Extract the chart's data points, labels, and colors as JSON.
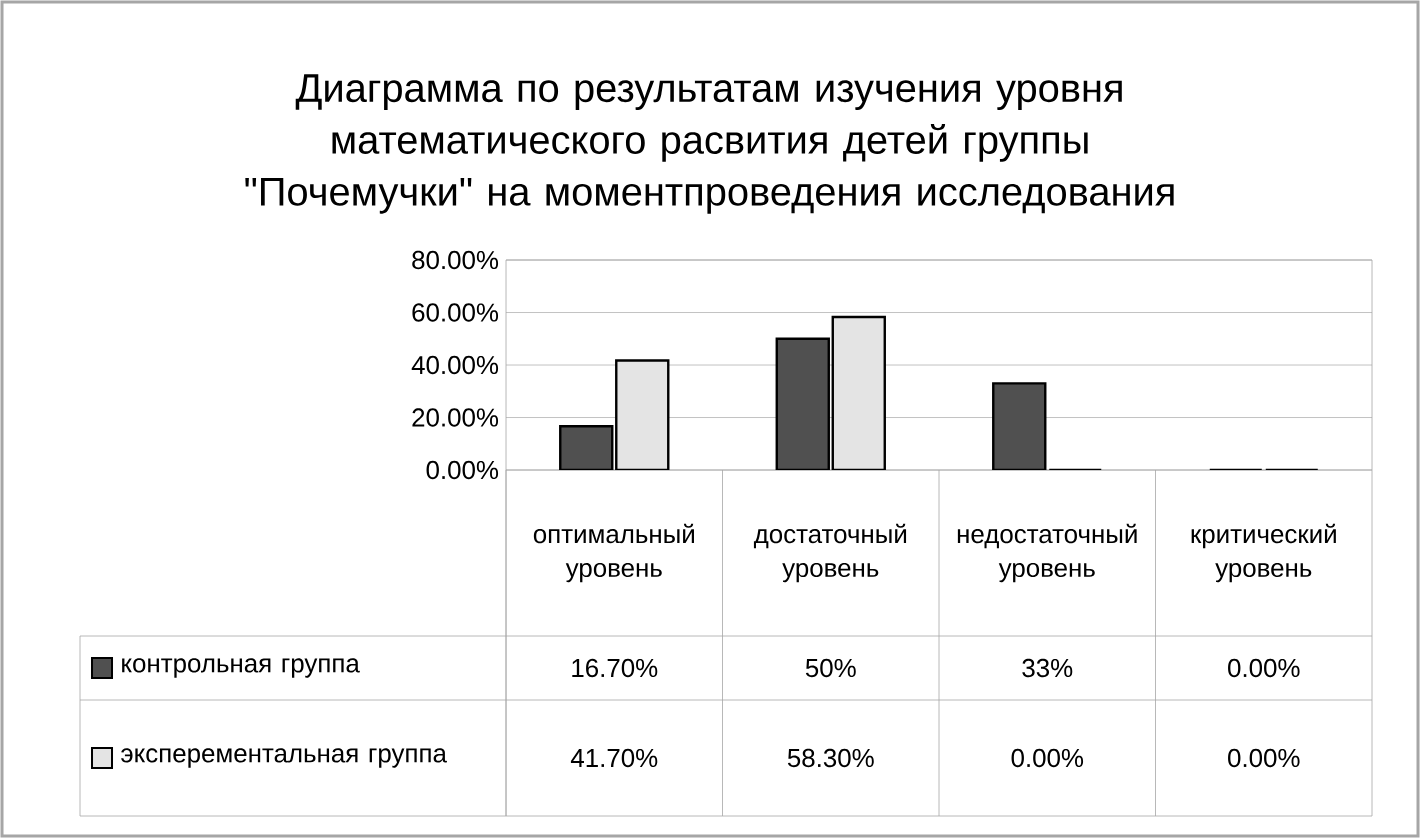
{
  "chart_data": {
    "type": "bar",
    "title": "Диаграмма по результатам изучения уровня математического расвития детей группы \"Почемучки\" на моментпроведения исследования",
    "categories": [
      "оптимальный уровень",
      "достаточный уровень",
      "недостаточный уровень",
      "критический уровень"
    ],
    "series": [
      {
        "name": "контрольная группа",
        "color": "#505050",
        "values": [
          16.7,
          50,
          33,
          0
        ],
        "value_labels": [
          "16.70%",
          "50%",
          "33%",
          "0.00%"
        ]
      },
      {
        "name": "эксперементальная группа",
        "color": "#e4e4e4",
        "values": [
          41.7,
          58.3,
          0,
          0
        ],
        "value_labels": [
          "41.70%",
          "58.30%",
          "0.00%",
          "0.00%"
        ]
      }
    ],
    "ylim": [
      0,
      80
    ],
    "yticks": [
      {
        "value": 0,
        "label": "0.00%"
      },
      {
        "value": 20,
        "label": "20.00%"
      },
      {
        "value": 40,
        "label": "40.00%"
      },
      {
        "value": 60,
        "label": "60.00%"
      },
      {
        "value": 80,
        "label": "80.00%"
      }
    ],
    "grid": "y",
    "legend": "bottom left"
  }
}
